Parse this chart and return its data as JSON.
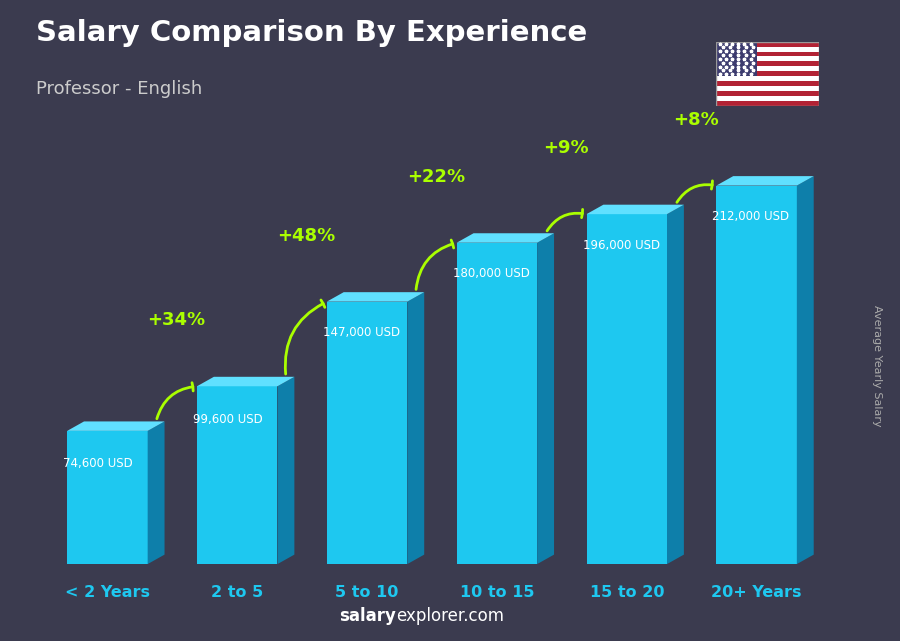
{
  "categories": [
    "< 2 Years",
    "2 to 5",
    "5 to 10",
    "10 to 15",
    "15 to 20",
    "20+ Years"
  ],
  "values": [
    74600,
    99600,
    147000,
    180000,
    196000,
    212000
  ],
  "salary_labels": [
    "74,600 USD",
    "99,600 USD",
    "147,000 USD",
    "180,000 USD",
    "196,000 USD",
    "212,000 USD"
  ],
  "pct_changes": [
    "+34%",
    "+48%",
    "+22%",
    "+9%",
    "+8%"
  ],
  "bar_color_face": "#1ec8f0",
  "bar_color_side": "#0e7faa",
  "bar_color_top": "#60e0ff",
  "title": "Salary Comparison By Experience",
  "subtitle": "Professor - English",
  "ylabel": "Average Yearly Salary",
  "website": "salaryexplorer.com",
  "bg_color": "#3b3b4f",
  "title_color": "#ffffff",
  "subtitle_color": "#cccccc",
  "salary_color": "#ffffff",
  "pct_color": "#aaff00",
  "xtick_color": "#1ec8f0",
  "ylabel_color": "#aaaaaa",
  "website_bold": "salary",
  "website_normal": "explorer.com"
}
